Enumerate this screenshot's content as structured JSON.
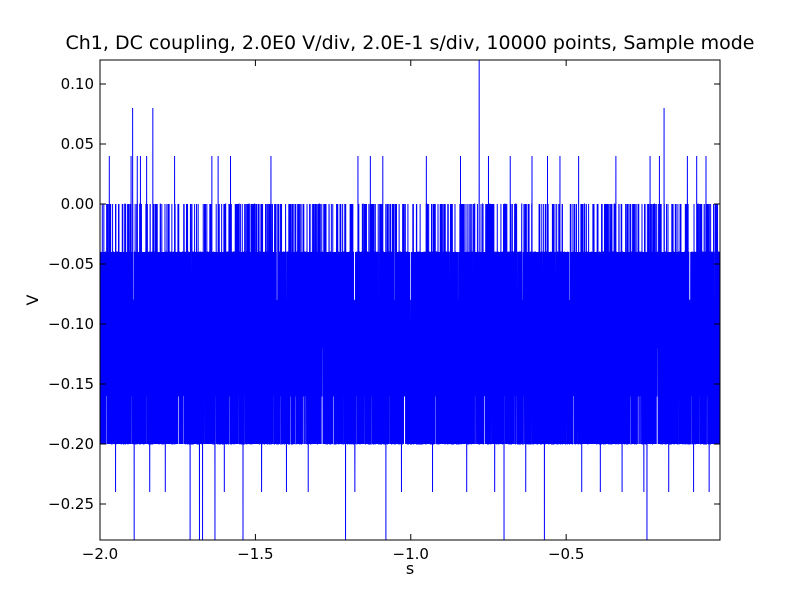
{
  "chart_data": {
    "type": "line",
    "title": "Ch1, DC coupling, 2.0E0 V/div, 2.0E-1 s/div, 10000 points, Sample mode",
    "xlabel": "s",
    "ylabel": "V",
    "xlim": [
      -2.0,
      -0.005
    ],
    "ylim": [
      -0.28,
      0.12
    ],
    "x_ticks": [
      {
        "value": -2.0,
        "label": "−2.0"
      },
      {
        "value": -1.5,
        "label": "−1.5"
      },
      {
        "value": -1.0,
        "label": "−1.0"
      },
      {
        "value": -0.5,
        "label": "−0.5"
      }
    ],
    "y_ticks": [
      {
        "value": 0.1,
        "label": "0.10"
      },
      {
        "value": 0.05,
        "label": "0.05"
      },
      {
        "value": 0.0,
        "label": "0.00"
      },
      {
        "value": -0.05,
        "label": "−0.05"
      },
      {
        "value": -0.1,
        "label": "−0.10"
      },
      {
        "value": -0.15,
        "label": "−0.15"
      },
      {
        "value": -0.2,
        "label": "−0.20"
      },
      {
        "value": -0.25,
        "label": "−0.25"
      }
    ],
    "grid": false,
    "series_color": "#0000ff",
    "series": [
      {
        "points": 10000,
        "quantization_levels": [
          -0.28,
          -0.24,
          -0.2,
          -0.16,
          -0.12,
          -0.08,
          -0.04,
          0.0,
          0.04,
          0.08,
          0.12
        ],
        "core_range": [
          -0.2,
          -0.04
        ],
        "approx_mean": -0.12,
        "spikes": [
          {
            "x": -1.895,
            "y": 0.08
          },
          {
            "x": -1.89,
            "y": -0.28
          },
          {
            "x": -1.83,
            "y": 0.08
          },
          {
            "x": -1.97,
            "y": 0.04
          },
          {
            "x": -1.9,
            "y": 0.04
          },
          {
            "x": -1.88,
            "y": 0.04
          },
          {
            "x": -1.87,
            "y": 0.04
          },
          {
            "x": -1.85,
            "y": 0.04
          },
          {
            "x": -1.76,
            "y": 0.04
          },
          {
            "x": -1.64,
            "y": 0.04
          },
          {
            "x": -1.62,
            "y": 0.04
          },
          {
            "x": -1.58,
            "y": 0.04
          },
          {
            "x": -1.45,
            "y": 0.04
          },
          {
            "x": -1.17,
            "y": 0.04
          },
          {
            "x": -1.13,
            "y": 0.04
          },
          {
            "x": -1.09,
            "y": 0.04
          },
          {
            "x": -0.95,
            "y": 0.04
          },
          {
            "x": -0.84,
            "y": 0.04
          },
          {
            "x": -0.82,
            "y": 0.04
          },
          {
            "x": -0.78,
            "y": 0.12
          },
          {
            "x": -0.75,
            "y": 0.04
          },
          {
            "x": -0.68,
            "y": 0.04
          },
          {
            "x": -0.61,
            "y": 0.04
          },
          {
            "x": -0.56,
            "y": 0.04
          },
          {
            "x": -0.52,
            "y": 0.04
          },
          {
            "x": -0.46,
            "y": 0.04
          },
          {
            "x": -0.39,
            "y": 0.04
          },
          {
            "x": -0.34,
            "y": 0.04
          },
          {
            "x": -0.23,
            "y": 0.04
          },
          {
            "x": -0.2,
            "y": 0.04
          },
          {
            "x": -0.185,
            "y": 0.08
          },
          {
            "x": -0.11,
            "y": 0.04
          },
          {
            "x": -0.08,
            "y": 0.04
          },
          {
            "x": -0.05,
            "y": 0.04
          },
          {
            "x": -1.95,
            "y": -0.24
          },
          {
            "x": -1.84,
            "y": -0.24
          },
          {
            "x": -1.79,
            "y": -0.24
          },
          {
            "x": -1.71,
            "y": -0.28
          },
          {
            "x": -1.68,
            "y": -0.28
          },
          {
            "x": -1.67,
            "y": -0.28
          },
          {
            "x": -1.63,
            "y": -0.28
          },
          {
            "x": -1.6,
            "y": -0.24
          },
          {
            "x": -1.54,
            "y": -0.28
          },
          {
            "x": -1.48,
            "y": -0.24
          },
          {
            "x": -1.4,
            "y": -0.24
          },
          {
            "x": -1.33,
            "y": -0.24
          },
          {
            "x": -1.21,
            "y": -0.28
          },
          {
            "x": -1.18,
            "y": -0.24
          },
          {
            "x": -1.08,
            "y": -0.28
          },
          {
            "x": -1.03,
            "y": -0.24
          },
          {
            "x": -0.93,
            "y": -0.24
          },
          {
            "x": -0.82,
            "y": -0.24
          },
          {
            "x": -0.73,
            "y": -0.24
          },
          {
            "x": -0.7,
            "y": -0.28
          },
          {
            "x": -0.63,
            "y": -0.24
          },
          {
            "x": -0.57,
            "y": -0.28
          },
          {
            "x": -0.45,
            "y": -0.24
          },
          {
            "x": -0.39,
            "y": -0.24
          },
          {
            "x": -0.32,
            "y": -0.24
          },
          {
            "x": -0.25,
            "y": -0.24
          },
          {
            "x": -0.24,
            "y": -0.28
          },
          {
            "x": -0.17,
            "y": -0.24
          },
          {
            "x": -0.09,
            "y": -0.24
          },
          {
            "x": -0.04,
            "y": -0.24
          }
        ]
      }
    ]
  }
}
